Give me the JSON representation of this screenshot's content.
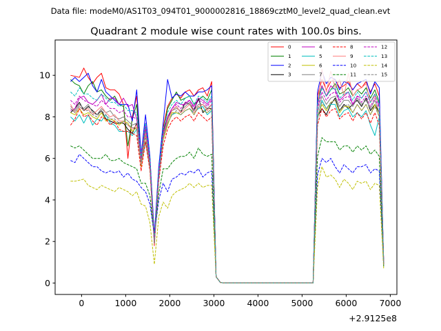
{
  "chart_data": {
    "type": "line",
    "suptitle": "Data file: modeM0/AS1T03_094T01_9000002816_18869cztM0_level2_quad_clean.evt",
    "title": "Quadrant 2 module wise count rates with 100.0s bins.",
    "x_offset_label": "+2.9125e8",
    "xlim": [
      -600,
      7150
    ],
    "ylim": [
      -0.55,
      11.7
    ],
    "x_ticks": [
      0,
      1000,
      2000,
      3000,
      4000,
      5000,
      6000,
      7000
    ],
    "y_ticks": [
      0,
      2,
      4,
      6,
      8,
      10
    ],
    "x": [
      -250,
      -150,
      -50,
      50,
      150,
      250,
      350,
      450,
      550,
      650,
      750,
      850,
      950,
      1050,
      1150,
      1250,
      1350,
      1450,
      1550,
      1650,
      1750,
      1850,
      1950,
      2050,
      2150,
      2250,
      2350,
      2450,
      2550,
      2650,
      2750,
      2850,
      2950,
      3050,
      3150,
      3250,
      3350,
      3450,
      3550,
      3650,
      3750,
      3850,
      3950,
      4050,
      4150,
      4250,
      4350,
      4450,
      4550,
      4650,
      4750,
      4850,
      4950,
      5050,
      5150,
      5250,
      5350,
      5450,
      5550,
      5650,
      5750,
      5850,
      5950,
      6050,
      6150,
      6250,
      6350,
      6450,
      6550,
      6650,
      6750,
      6850
    ],
    "series": [
      {
        "name": "0",
        "color": "#ff0000",
        "dash": "solid",
        "values": [
          10.0,
          9.95,
          9.9,
          10.35,
          9.9,
          9.6,
          9.9,
          10.1,
          9.4,
          9.3,
          9.3,
          9.1,
          8.6,
          6.0,
          8.0,
          9.0,
          6.0,
          7.5,
          6.0,
          2.2,
          5.5,
          7.5,
          8.5,
          8.9,
          9.1,
          8.9,
          9.2,
          9.3,
          9.0,
          9.3,
          9.4,
          9.0,
          9.7,
          0.3,
          0.02,
          0,
          0,
          0,
          0,
          0,
          0,
          0,
          0,
          0,
          0,
          0,
          0,
          0,
          0,
          0,
          0,
          0,
          0,
          0,
          0,
          0,
          9.0,
          9.8,
          9.3,
          9.7,
          9.8,
          9.4,
          9.5,
          9.7,
          9.3,
          9.6,
          9.4,
          9.7,
          9.2,
          9.6,
          9.0,
          1.0
        ]
      },
      {
        "name": "1",
        "color": "#008000",
        "dash": "solid",
        "values": [
          9.8,
          9.6,
          9.5,
          9.1,
          9.5,
          9.7,
          9.2,
          9.3,
          9.0,
          8.8,
          9.0,
          8.6,
          8.5,
          6.6,
          7.9,
          8.6,
          5.9,
          7.4,
          5.9,
          2.1,
          5.3,
          7.2,
          8.4,
          8.8,
          9.2,
          8.8,
          8.9,
          9.0,
          8.6,
          8.8,
          9.0,
          8.8,
          9.3,
          0.3,
          0.02,
          0,
          0,
          0,
          0,
          0,
          0,
          0,
          0,
          0,
          0,
          0,
          0,
          0,
          0,
          0,
          0,
          0,
          0,
          0,
          0,
          0,
          8.8,
          9.5,
          9.0,
          9.3,
          9.6,
          9.1,
          9.2,
          9.4,
          9.0,
          9.3,
          9.1,
          9.4,
          8.9,
          9.3,
          8.7,
          1.0
        ]
      },
      {
        "name": "2",
        "color": "#0000ff",
        "dash": "solid",
        "values": [
          9.7,
          9.9,
          9.7,
          9.9,
          10.1,
          9.5,
          9.2,
          9.8,
          9.2,
          9.0,
          8.8,
          8.6,
          8.6,
          8.6,
          7.8,
          9.3,
          6.2,
          8.1,
          6.1,
          2.3,
          5.6,
          7.7,
          9.8,
          8.9,
          9.1,
          9.0,
          9.2,
          9.0,
          9.0,
          9.2,
          9.2,
          9.3,
          9.5,
          0.3,
          0.02,
          0,
          0,
          0,
          0,
          0,
          0,
          0,
          0,
          0,
          0,
          0,
          0,
          0,
          0,
          0,
          0,
          0,
          0,
          0,
          0,
          0,
          9.2,
          10.2,
          9.6,
          9.9,
          9.8,
          9.3,
          9.7,
          9.6,
          9.3,
          9.6,
          9.7,
          9.8,
          9.1,
          9.7,
          9.4,
          1.0
        ]
      },
      {
        "name": "3",
        "color": "#000000",
        "dash": "solid",
        "values": [
          8.2,
          8.4,
          8.7,
          8.3,
          8.5,
          8.3,
          8.1,
          8.3,
          7.9,
          7.8,
          7.7,
          7.7,
          7.7,
          7.4,
          7.2,
          7.7,
          5.8,
          7.1,
          5.6,
          1.9,
          5.2,
          7.2,
          8.0,
          8.3,
          8.5,
          8.2,
          8.7,
          8.6,
          8.3,
          8.9,
          8.2,
          8.4,
          8.4,
          0.3,
          0.02,
          0,
          0,
          0,
          0,
          0,
          0,
          0,
          0,
          0,
          0,
          0,
          0,
          0,
          0,
          0,
          0,
          0,
          0,
          0,
          0,
          0,
          8.0,
          8.4,
          8.1,
          8.6,
          8.9,
          8.3,
          8.6,
          8.4,
          8.6,
          8.8,
          8.5,
          8.9,
          8.3,
          8.6,
          8.2,
          0.9
        ]
      },
      {
        "name": "4",
        "color": "#bf00bf",
        "dash": "solid",
        "values": [
          8.3,
          8.4,
          8.9,
          9.0,
          8.7,
          8.6,
          8.8,
          9.1,
          8.6,
          8.9,
          8.9,
          8.6,
          8.9,
          8.5,
          8.6,
          7.9,
          6.2,
          7.7,
          5.9,
          1.9,
          5.4,
          7.2,
          8.0,
          8.4,
          8.7,
          8.6,
          8.6,
          8.8,
          8.5,
          8.9,
          8.8,
          8.6,
          8.9,
          0.3,
          0.02,
          0,
          0,
          0,
          0,
          0,
          0,
          0,
          0,
          0,
          0,
          0,
          0,
          0,
          0,
          0,
          0,
          0,
          0,
          0,
          0,
          0,
          8.5,
          9.5,
          9.0,
          9.5,
          9.3,
          8.8,
          9.0,
          9.2,
          8.6,
          9.0,
          8.9,
          9.2,
          8.7,
          9.1,
          8.5,
          1.0
        ]
      },
      {
        "name": "5",
        "color": "#00bfbf",
        "dash": "solid",
        "values": [
          8.0,
          7.8,
          8.1,
          7.7,
          8.1,
          7.6,
          7.9,
          7.8,
          8.1,
          7.7,
          7.6,
          7.3,
          7.3,
          7.3,
          7.1,
          7.4,
          5.7,
          6.8,
          5.5,
          1.9,
          5.0,
          6.9,
          7.7,
          8.1,
          8.2,
          8.1,
          8.3,
          8.4,
          8.2,
          8.4,
          8.5,
          8.1,
          8.3,
          0.3,
          0.02,
          0,
          0,
          0,
          0,
          0,
          0,
          0,
          0,
          0,
          0,
          0,
          0,
          0,
          0,
          0,
          0,
          0,
          0,
          0,
          0,
          0,
          7.9,
          8.8,
          8.4,
          8.6,
          8.6,
          8.0,
          8.3,
          8.4,
          8.0,
          8.2,
          8.0,
          8.3,
          7.6,
          7.1,
          8.0,
          0.9
        ]
      },
      {
        "name": "6",
        "color": "#bfbf00",
        "dash": "solid",
        "values": [
          8.2,
          8.1,
          8.4,
          8.1,
          8.2,
          8.0,
          7.9,
          8.2,
          7.8,
          7.9,
          7.8,
          7.6,
          7.8,
          7.7,
          7.3,
          7.5,
          5.6,
          7.1,
          5.5,
          1.9,
          5.1,
          6.9,
          7.6,
          8.2,
          8.2,
          8.1,
          8.3,
          8.4,
          8.1,
          8.5,
          8.3,
          8.2,
          8.4,
          0.3,
          0.02,
          0,
          0,
          0,
          0,
          0,
          0,
          0,
          0,
          0,
          0,
          0,
          0,
          0,
          0,
          0,
          0,
          0,
          0,
          0,
          0,
          0,
          8.0,
          8.6,
          8.3,
          8.7,
          8.8,
          8.2,
          8.5,
          8.5,
          8.2,
          8.6,
          8.3,
          8.6,
          8.1,
          8.6,
          8.0,
          0.9
        ]
      },
      {
        "name": "7",
        "color": "#808080",
        "dash": "solid",
        "values": [
          8.5,
          8.3,
          8.6,
          8.4,
          8.6,
          8.2,
          8.1,
          8.4,
          8.2,
          8.3,
          8.0,
          7.9,
          8.0,
          7.8,
          7.6,
          7.7,
          5.8,
          7.4,
          5.7,
          2.0,
          5.2,
          7.1,
          7.9,
          8.3,
          8.4,
          8.3,
          8.5,
          8.7,
          8.3,
          8.6,
          8.6,
          8.4,
          8.6,
          0.3,
          0.02,
          0,
          0,
          0,
          0,
          0,
          0,
          0,
          0,
          0,
          0,
          0,
          0,
          0,
          0,
          0,
          0,
          0,
          0,
          0,
          0,
          0,
          8.2,
          9.0,
          8.6,
          8.9,
          9.0,
          8.5,
          8.8,
          8.8,
          8.5,
          8.9,
          8.6,
          8.8,
          8.4,
          8.8,
          8.2,
          0.9
        ]
      },
      {
        "name": "8",
        "color": "#ff0000",
        "dash": "dashed",
        "values": [
          7.6,
          7.9,
          8.4,
          8.0,
          8.1,
          7.8,
          7.6,
          8.0,
          7.9,
          7.6,
          7.8,
          7.4,
          7.3,
          7.3,
          7.2,
          7.1,
          5.4,
          6.8,
          5.4,
          1.8,
          4.9,
          6.6,
          7.4,
          7.8,
          8.0,
          7.8,
          8.0,
          8.1,
          7.8,
          8.2,
          8.0,
          7.8,
          8.0,
          0.3,
          0.02,
          0,
          0,
          0,
          0,
          0,
          0,
          0,
          0,
          0,
          0,
          0,
          0,
          0,
          0,
          0,
          0,
          0,
          0,
          0,
          0,
          0,
          7.6,
          8.4,
          8.0,
          8.3,
          8.4,
          7.9,
          8.1,
          8.2,
          7.8,
          8.2,
          7.9,
          8.2,
          7.7,
          8.2,
          7.6,
          0.9
        ]
      },
      {
        "name": "9",
        "color": "#ff8080",
        "dash": "solid",
        "values": [
          8.6,
          8.2,
          8.5,
          8.3,
          8.4,
          8.1,
          8.3,
          8.5,
          8.2,
          8.0,
          8.1,
          7.8,
          7.8,
          7.6,
          7.4,
          7.6,
          5.7,
          7.2,
          5.6,
          1.9,
          5.1,
          7.0,
          7.8,
          8.3,
          8.5,
          8.2,
          8.4,
          8.6,
          8.2,
          8.5,
          8.6,
          8.3,
          8.6,
          0.3,
          0.02,
          0,
          0,
          0,
          0,
          0,
          0,
          0,
          0,
          0,
          0,
          0,
          0,
          0,
          0,
          0,
          0,
          0,
          0,
          0,
          0,
          0,
          8.5,
          10.3,
          9.2,
          10.2,
          9.4,
          9.8,
          9.0,
          10.1,
          9.0,
          9.3,
          9.4,
          9.6,
          8.7,
          9.0,
          8.6,
          1.0
        ]
      },
      {
        "name": "10",
        "color": "#0000ff",
        "dash": "dashed",
        "values": [
          5.9,
          5.8,
          6.2,
          6.0,
          5.8,
          5.6,
          5.6,
          5.4,
          5.3,
          5.4,
          5.3,
          5.4,
          5.1,
          5.3,
          5.0,
          4.9,
          4.6,
          4.4,
          3.8,
          2.3,
          4.0,
          4.8,
          4.4,
          5.0,
          5.1,
          5.3,
          5.2,
          5.4,
          5.3,
          5.5,
          5.1,
          5.3,
          5.4,
          0.3,
          0.02,
          0,
          0,
          0,
          0,
          0,
          0,
          0,
          0,
          0,
          0,
          0,
          0,
          0,
          0,
          0,
          0,
          0,
          0,
          0,
          0,
          0,
          5.2,
          6.0,
          5.8,
          6.0,
          5.6,
          5.3,
          5.7,
          5.5,
          5.3,
          5.6,
          5.6,
          5.7,
          5.3,
          5.5,
          5.4,
          0.8
        ]
      },
      {
        "name": "11",
        "color": "#008000",
        "dash": "dashed",
        "values": [
          6.6,
          6.5,
          6.6,
          6.4,
          6.2,
          6.0,
          6.0,
          6.0,
          6.2,
          5.9,
          5.9,
          6.0,
          5.8,
          5.7,
          5.6,
          5.5,
          4.8,
          4.8,
          4.2,
          2.2,
          4.3,
          5.5,
          5.5,
          5.8,
          6.0,
          6.1,
          6.1,
          6.3,
          6.0,
          6.5,
          6.2,
          6.1,
          6.2,
          0.3,
          0.02,
          0,
          0,
          0,
          0,
          0,
          0,
          0,
          0,
          0,
          0,
          0,
          0,
          0,
          0,
          0,
          0,
          0,
          0,
          0,
          0,
          0,
          6.1,
          7.0,
          6.8,
          6.8,
          6.8,
          6.4,
          6.6,
          6.6,
          6.3,
          6.6,
          6.4,
          6.6,
          6.2,
          6.4,
          6.1,
          0.8
        ]
      },
      {
        "name": "12",
        "color": "#bf00bf",
        "dash": "dashed",
        "values": [
          8.8,
          8.6,
          9.0,
          8.8,
          8.7,
          8.6,
          8.5,
          8.8,
          8.6,
          8.4,
          8.4,
          8.2,
          8.3,
          8.0,
          8.0,
          7.9,
          6.0,
          7.5,
          5.8,
          2.0,
          5.3,
          7.2,
          8.0,
          8.4,
          8.6,
          8.4,
          8.7,
          8.8,
          8.4,
          8.8,
          8.7,
          8.5,
          8.8,
          0.3,
          0.02,
          0,
          0,
          0,
          0,
          0,
          0,
          0,
          0,
          0,
          0,
          0,
          0,
          0,
          0,
          0,
          0,
          0,
          0,
          0,
          0,
          0,
          8.4,
          9.2,
          8.8,
          9.1,
          9.2,
          8.7,
          8.9,
          9.0,
          8.6,
          9.0,
          8.7,
          9.0,
          8.5,
          8.9,
          8.4,
          1.0
        ]
      },
      {
        "name": "13",
        "color": "#00bfbf",
        "dash": "dashed",
        "values": [
          9.2,
          9.0,
          9.4,
          9.1,
          9.1,
          8.9,
          8.8,
          9.1,
          8.9,
          8.7,
          8.7,
          8.5,
          8.6,
          8.3,
          8.3,
          8.2,
          6.1,
          7.7,
          6.0,
          2.0,
          5.4,
          7.4,
          8.2,
          8.6,
          8.8,
          8.6,
          8.9,
          9.0,
          8.6,
          9.0,
          8.9,
          8.7,
          9.0,
          0.3,
          0.02,
          0,
          0,
          0,
          0,
          0,
          0,
          0,
          0,
          0,
          0,
          0,
          0,
          0,
          0,
          0,
          0,
          0,
          0,
          0,
          0,
          0,
          8.6,
          9.4,
          9.0,
          9.3,
          9.4,
          8.9,
          9.1,
          9.2,
          8.8,
          9.2,
          8.9,
          9.2,
          8.7,
          9.1,
          8.6,
          1.0
        ]
      },
      {
        "name": "14",
        "color": "#bfbf00",
        "dash": "dashed",
        "values": [
          4.9,
          4.9,
          4.95,
          5.0,
          4.7,
          4.6,
          4.5,
          4.7,
          4.6,
          4.5,
          4.4,
          4.6,
          4.5,
          4.4,
          4.2,
          4.4,
          3.8,
          3.7,
          2.9,
          0.9,
          3.2,
          3.9,
          3.6,
          4.2,
          4.4,
          4.5,
          4.6,
          4.8,
          4.6,
          4.8,
          4.6,
          4.7,
          4.7,
          0.3,
          0.02,
          0,
          0,
          0,
          0,
          0,
          0,
          0,
          0,
          0,
          0,
          0,
          0,
          0,
          0,
          0,
          0,
          0,
          0,
          0,
          0,
          0,
          4.6,
          5.6,
          5.1,
          5.2,
          5.0,
          4.6,
          5.0,
          4.8,
          4.5,
          4.9,
          4.8,
          4.9,
          4.5,
          4.8,
          4.7,
          0.7
        ]
      },
      {
        "name": "15",
        "color": "#808080",
        "dash": "dashed",
        "values": [
          8.4,
          8.2,
          8.5,
          8.3,
          8.3,
          8.1,
          8.0,
          8.3,
          8.1,
          7.9,
          7.9,
          7.7,
          7.8,
          7.6,
          7.5,
          7.4,
          5.7,
          7.1,
          5.6,
          1.9,
          5.1,
          7.0,
          7.7,
          8.1,
          8.3,
          8.1,
          8.3,
          8.4,
          8.1,
          8.5,
          8.3,
          8.2,
          8.4,
          0.3,
          0.02,
          0,
          0,
          0,
          0,
          0,
          0,
          0,
          0,
          0,
          0,
          0,
          0,
          0,
          0,
          0,
          0,
          0,
          0,
          0,
          0,
          0,
          8.0,
          8.7,
          8.4,
          8.7,
          8.8,
          8.3,
          8.5,
          8.6,
          8.2,
          8.6,
          8.3,
          8.6,
          8.1,
          8.5,
          8.0,
          0.9
        ]
      }
    ]
  }
}
